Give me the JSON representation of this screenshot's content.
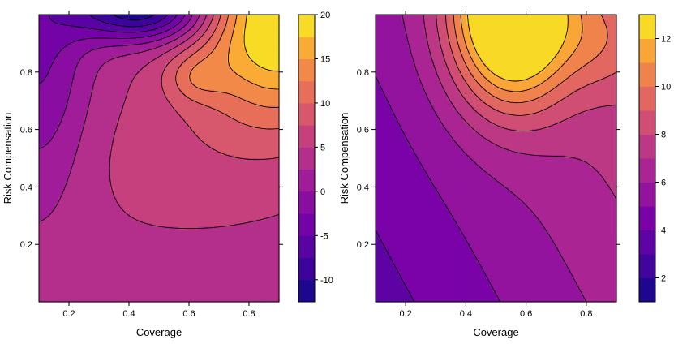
{
  "chart_data": [
    {
      "type": "contour",
      "title": "",
      "xlabel": "Coverage",
      "ylabel": "Risk Compensation",
      "xlim": [
        0.1,
        0.9
      ],
      "ylim": [
        0.0,
        1.0
      ],
      "x_ticks": [
        0.2,
        0.4,
        0.6,
        0.8
      ],
      "x_tick_labels": [
        "0.2",
        "0.4",
        "0.6",
        "0.8"
      ],
      "y_ticks": [
        0.2,
        0.4,
        0.6,
        0.8
      ],
      "y_tick_labels": [
        "0.2",
        "0.4",
        "0.6",
        "0.8"
      ],
      "colorbar": {
        "min": -12.5,
        "max": 20,
        "ticks": [
          -10,
          -5,
          0,
          5,
          10,
          15,
          20
        ],
        "tick_labels": [
          "-10",
          "-5",
          "0",
          "5",
          "10",
          "15",
          "20"
        ],
        "n_bands": 13
      },
      "surface": {
        "base": 4,
        "slope_x": 0,
        "slope_y": 0,
        "bumps": [
          {
            "x": 0.9,
            "y": 1.0,
            "amp": 18,
            "sx": 0.2,
            "sy": 0.25
          },
          {
            "x": 0.62,
            "y": 0.78,
            "amp": 4,
            "sx": 0.07,
            "sy": 0.06
          },
          {
            "x": 0.45,
            "y": 1.02,
            "amp": -17,
            "sx": 0.17,
            "sy": 0.08
          },
          {
            "x": 0.1,
            "y": 0.85,
            "amp": -7,
            "sx": 0.12,
            "sy": 0.35
          },
          {
            "x": 0.55,
            "y": 0.5,
            "amp": 2,
            "sx": 0.3,
            "sy": 0.2
          }
        ]
      }
    },
    {
      "type": "contour",
      "title": "",
      "xlabel": "Coverage",
      "ylabel": "Risk Compensation",
      "xlim": [
        0.1,
        0.9
      ],
      "ylim": [
        0.0,
        1.0
      ],
      "x_ticks": [
        0.2,
        0.4,
        0.6,
        0.8
      ],
      "x_tick_labels": [
        "0.2",
        "0.4",
        "0.6",
        "0.8"
      ],
      "y_ticks": [
        0.2,
        0.4,
        0.6,
        0.8
      ],
      "y_tick_labels": [
        "0.2",
        "0.4",
        "0.6",
        "0.8"
      ],
      "colorbar": {
        "min": 1,
        "max": 13,
        "ticks": [
          2,
          4,
          6,
          8,
          10,
          12
        ],
        "tick_labels": [
          "2",
          "4",
          "6",
          "8",
          "10",
          "12"
        ],
        "n_bands": 12
      },
      "surface": {
        "base": 3.2,
        "slope_x": 3.5,
        "slope_y": 1.8,
        "bumps": [
          {
            "x": 0.55,
            "y": 1.0,
            "amp": 9.5,
            "sx": 0.14,
            "sy": 0.22
          },
          {
            "x": 0.85,
            "y": 0.9,
            "amp": 1.5,
            "sx": 0.1,
            "sy": 0.12
          }
        ]
      }
    }
  ]
}
